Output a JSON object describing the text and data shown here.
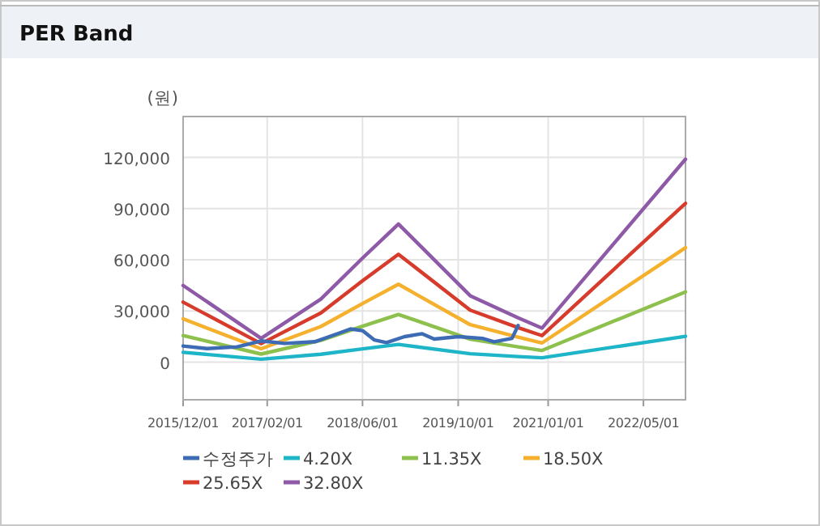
{
  "chart_data": {
    "type": "line",
    "title": "PER Band",
    "ylabel": "(원)",
    "legend": "bottom",
    "grid": true,
    "marker": "none",
    "line_style": "solid",
    "xlim": [
      "2015-12-01",
      "2022-12-01"
    ],
    "xticks": [
      {
        "value": "2015-12-01",
        "label": "2015/12/01"
      },
      {
        "value": "2017-02-01",
        "label": "2017/02/01"
      },
      {
        "value": "2018-06-01",
        "label": "2018/06/01"
      },
      {
        "value": "2019-10-01",
        "label": "2019/10/01"
      },
      {
        "value": "2021-01-01",
        "label": "2021/01/01"
      },
      {
        "value": "2022-05-01",
        "label": "2022/05/01"
      }
    ],
    "ylim": [
      -22000,
      144000
    ],
    "yticks": [
      0,
      {
        "value": 30000,
        "label": "30,000"
      },
      {
        "value": 60000,
        "label": "60,000"
      },
      {
        "value": 90000,
        "label": "90,000"
      },
      {
        "value": 120000,
        "label": "120,000"
      }
    ],
    "x": [
      "2015-12",
      "2017-01",
      "2017-11",
      "2018-06",
      "2018-12",
      "2019-12",
      "2020-08",
      "2020-12",
      "2022-12"
    ],
    "series": [
      {
        "name": "수정주가",
        "color": "#3d6cb5",
        "x": [
          "2015-12",
          "2016-04",
          "2016-09",
          "2017-01",
          "2017-05",
          "2017-10",
          "2018-02",
          "2018-04",
          "2018-06",
          "2018-08",
          "2018-10",
          "2019-01",
          "2019-04",
          "2019-06",
          "2019-10",
          "2020-02",
          "2020-04",
          "2020-07",
          "2020-08"
        ],
        "values": [
          9500,
          8000,
          9000,
          12500,
          11000,
          12000,
          17000,
          19500,
          18500,
          13000,
          11500,
          15000,
          16700,
          13600,
          15000,
          14000,
          12000,
          14000,
          21500
        ]
      },
      {
        "name": "4.20X",
        "color": "#1fb5c9",
        "values": [
          5800,
          1800,
          4700,
          7800,
          10400,
          5000,
          3300,
          2600,
          15200
        ]
      },
      {
        "name": "11.35X",
        "color": "#8dc04d",
        "values": [
          15600,
          4800,
          12800,
          21100,
          28000,
          13500,
          9000,
          6900,
          41200
        ]
      },
      {
        "name": "18.50X",
        "color": "#f5b02e",
        "values": [
          25400,
          7900,
          20900,
          34400,
          45700,
          22000,
          14700,
          11300,
          67100
        ]
      },
      {
        "name": "25.65X",
        "color": "#d63b2b",
        "values": [
          35200,
          10900,
          28900,
          47700,
          63300,
          30500,
          20300,
          15600,
          93100
        ]
      },
      {
        "name": "32.80X",
        "color": "#8e5aa8",
        "values": [
          45000,
          14000,
          37000,
          61000,
          81000,
          39000,
          26000,
          20000,
          119000
        ]
      }
    ]
  }
}
